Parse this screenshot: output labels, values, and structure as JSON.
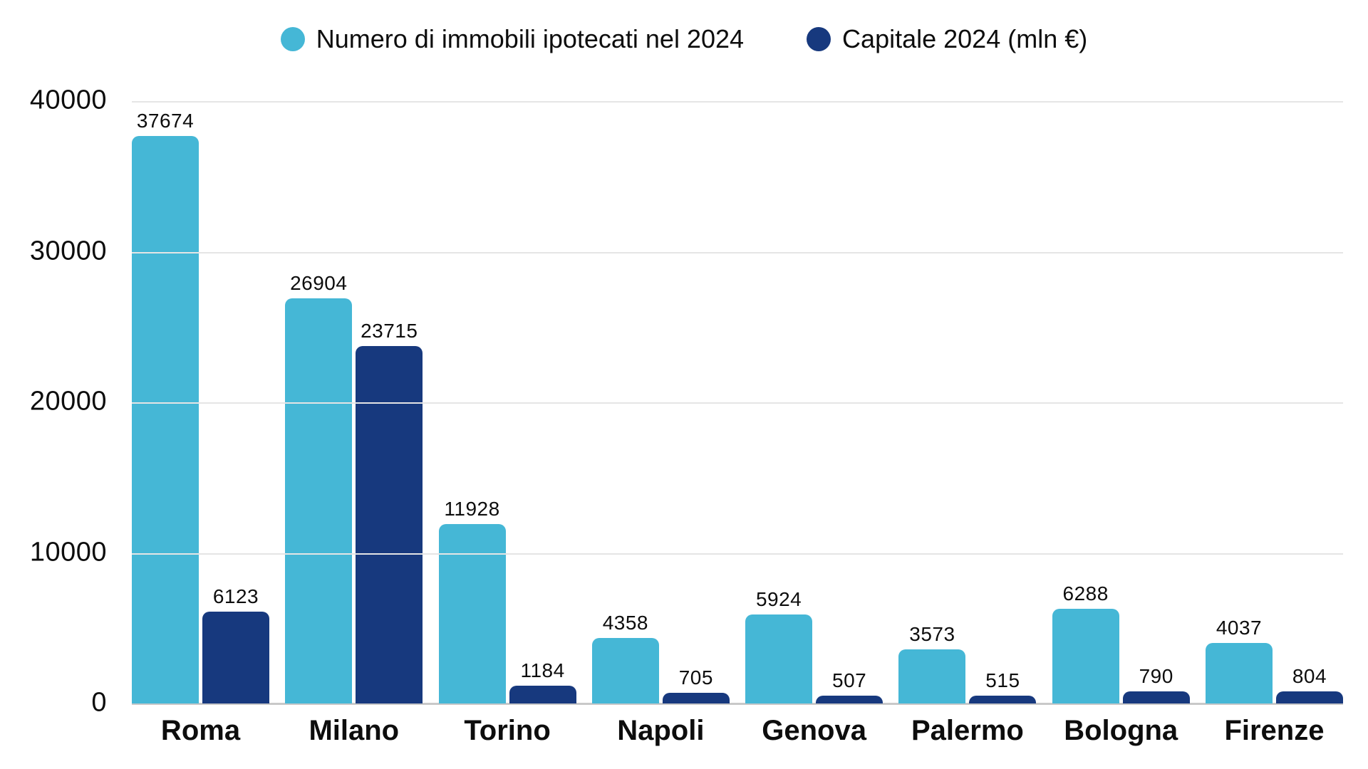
{
  "chart_data": {
    "type": "bar",
    "title": "",
    "xlabel": "",
    "ylabel": "",
    "categories": [
      "Roma",
      "Milano",
      "Torino",
      "Napoli",
      "Genova",
      "Palermo",
      "Bologna",
      "Firenze"
    ],
    "series": [
      {
        "name": "Numero di immobili ipotecati nel 2024",
        "color": "#45B7D6",
        "values": [
          37674,
          26904,
          11928,
          4358,
          5924,
          3573,
          6288,
          4037
        ]
      },
      {
        "name": "Capitale 2024 (mln €)",
        "color": "#17397E",
        "values": [
          6123,
          23715,
          1184,
          705,
          507,
          515,
          790,
          804
        ]
      }
    ],
    "ylim": [
      0,
      40000
    ],
    "yticks": [
      0,
      10000,
      20000,
      30000,
      40000
    ],
    "grid": "horizontal",
    "legend_position": "top",
    "background": "#ffffff",
    "gridline_color": "#e5e5e5",
    "axis_line_color": "#c9c9c9",
    "text_color": "#0d0d0d"
  }
}
